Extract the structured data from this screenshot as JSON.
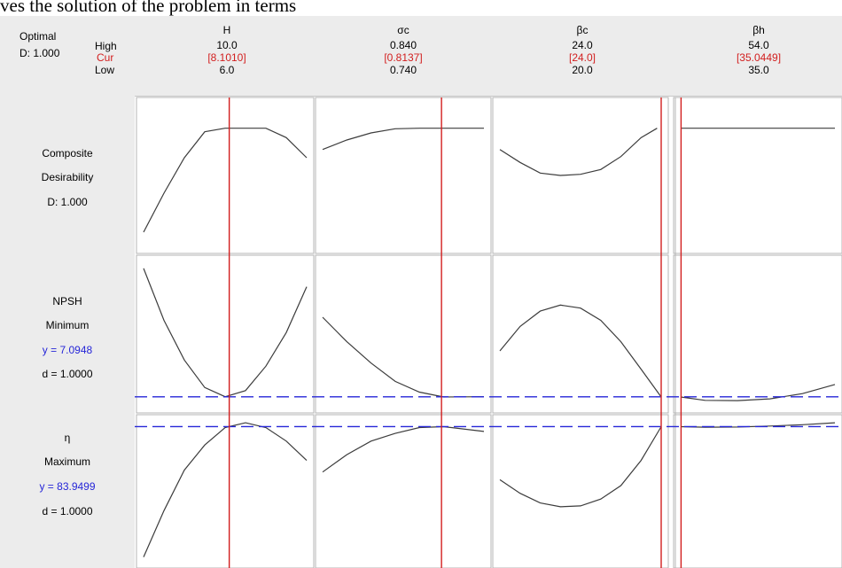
{
  "caption": "ves the solution of the problem in terms",
  "optimal": {
    "label": "Optimal",
    "d": "D: 1.000"
  },
  "level_labels": {
    "high": "High",
    "cur": "Cur",
    "low": "Low"
  },
  "factors": [
    {
      "name": "H",
      "high": "10.0",
      "cur": "[8.1010]",
      "low": "6.0"
    },
    {
      "name": "σc",
      "high": "0.840",
      "cur": "[0.8137]",
      "low": "0.740"
    },
    {
      "name": "βc",
      "high": "24.0",
      "cur": "[24.0]",
      "low": "20.0"
    },
    {
      "name": "βh",
      "high": "54.0",
      "cur": "[35.0449]",
      "low": "35.0"
    }
  ],
  "rows": [
    {
      "title": "Composite",
      "line2": "Desirability",
      "line3": "D: 1.000",
      "line4": ""
    },
    {
      "title": "NPSH",
      "line2": "Minimum",
      "line3": "y = 7.0948",
      "line4": "d = 1.0000"
    },
    {
      "title": "η",
      "line2": "Maximum",
      "line3": "y = 83.9499",
      "line4": "d = 1.0000"
    }
  ],
  "colors": {
    "current_line": "#d21e1e",
    "target_line": "#2626d8",
    "curve": "#3c3c3c",
    "grid": "#b4b4b4"
  },
  "chart_data": {
    "type": "line",
    "title": "",
    "factors": [
      {
        "name": "H",
        "low": 6.0,
        "high": 10.0,
        "current": 8.101
      },
      {
        "name": "σc",
        "low": 0.74,
        "high": 0.84,
        "current": 0.8137
      },
      {
        "name": "βc",
        "low": 20.0,
        "high": 24.0,
        "current": 24.0
      },
      {
        "name": "βh",
        "low": 35.0,
        "high": 54.0,
        "current": 35.0449
      }
    ],
    "responses": [
      {
        "name": "Composite Desirability",
        "goal": "",
        "value": 1.0,
        "d": 1.0,
        "ylim": [
          0,
          1.2
        ],
        "curves": [
          {
            "x": [
              6.0,
              6.5,
              7.0,
              7.5,
              8.0,
              8.5,
              9.0,
              9.5,
              10.0
            ],
            "y": [
              0.12,
              0.45,
              0.75,
              0.97,
              1.0,
              1.0,
              1.0,
              0.92,
              0.75
            ]
          },
          {
            "x": [
              0.74,
              0.755,
              0.77,
              0.785,
              0.8,
              0.815,
              0.84
            ],
            "y": [
              0.82,
              0.9,
              0.96,
              0.995,
              1.0,
              1.0,
              1.0
            ]
          },
          {
            "x": [
              20.0,
              20.5,
              21.0,
              21.5,
              22.0,
              22.5,
              23.0,
              23.5,
              23.9
            ],
            "y": [
              0.82,
              0.71,
              0.62,
              0.6,
              0.61,
              0.65,
              0.76,
              0.92,
              1.0
            ]
          },
          {
            "x": [
              35.0,
              40.0,
              44.0,
              48.0,
              54.0
            ],
            "y": [
              1.0,
              1.0,
              1.0,
              1.0,
              1.0
            ]
          }
        ]
      },
      {
        "name": "NPSH",
        "goal": "Minimum",
        "value": 7.0948,
        "d": 1.0,
        "ylim": [
          6.8,
          11.5
        ],
        "curves": [
          {
            "x": [
              6.0,
              6.5,
              7.0,
              7.5,
              8.0,
              8.5,
              9.0,
              9.5,
              10.0
            ],
            "y": [
              11.3,
              9.6,
              8.3,
              7.4,
              7.1,
              7.3,
              8.1,
              9.2,
              10.7
            ]
          },
          {
            "x": [
              0.74,
              0.755,
              0.77,
              0.785,
              0.8,
              0.815,
              0.84
            ],
            "y": [
              9.7,
              8.9,
              8.2,
              7.6,
              7.25,
              7.09,
              7.1
            ]
          },
          {
            "x": [
              20.0,
              20.5,
              21.0,
              21.5,
              22.0,
              22.5,
              23.0,
              23.5,
              24.0
            ],
            "y": [
              8.6,
              9.4,
              9.9,
              10.1,
              10.0,
              9.6,
              8.9,
              8.0,
              7.09
            ]
          },
          {
            "x": [
              35.0,
              38.0,
              42.0,
              46.0,
              50.0,
              54.0
            ],
            "y": [
              7.09,
              6.98,
              6.97,
              7.03,
              7.2,
              7.5
            ]
          }
        ]
      },
      {
        "name": "η",
        "goal": "Maximum",
        "value": 83.9499,
        "d": 1.0,
        "ylim": [
          77.0,
          84.2
        ],
        "curves": [
          {
            "x": [
              6.0,
              6.5,
              7.0,
              7.5,
              8.0,
              8.5,
              9.0,
              9.5,
              10.0
            ],
            "y": [
              77.2,
              79.6,
              81.7,
              83.0,
              83.9,
              84.15,
              83.9,
              83.2,
              82.2
            ]
          },
          {
            "x": [
              0.74,
              0.755,
              0.77,
              0.785,
              0.8,
              0.815,
              0.84
            ],
            "y": [
              81.6,
              82.5,
              83.2,
              83.6,
              83.9,
              83.95,
              83.7
            ]
          },
          {
            "x": [
              20.0,
              20.5,
              21.0,
              21.5,
              22.0,
              22.5,
              23.0,
              23.5,
              24.0
            ],
            "y": [
              81.2,
              80.5,
              80.0,
              79.8,
              79.85,
              80.2,
              80.9,
              82.2,
              83.95
            ]
          },
          {
            "x": [
              35.0,
              38.0,
              42.0,
              46.0,
              50.0,
              54.0
            ],
            "y": [
              83.95,
              83.92,
              83.93,
              83.98,
              84.05,
              84.15
            ]
          }
        ]
      }
    ]
  }
}
